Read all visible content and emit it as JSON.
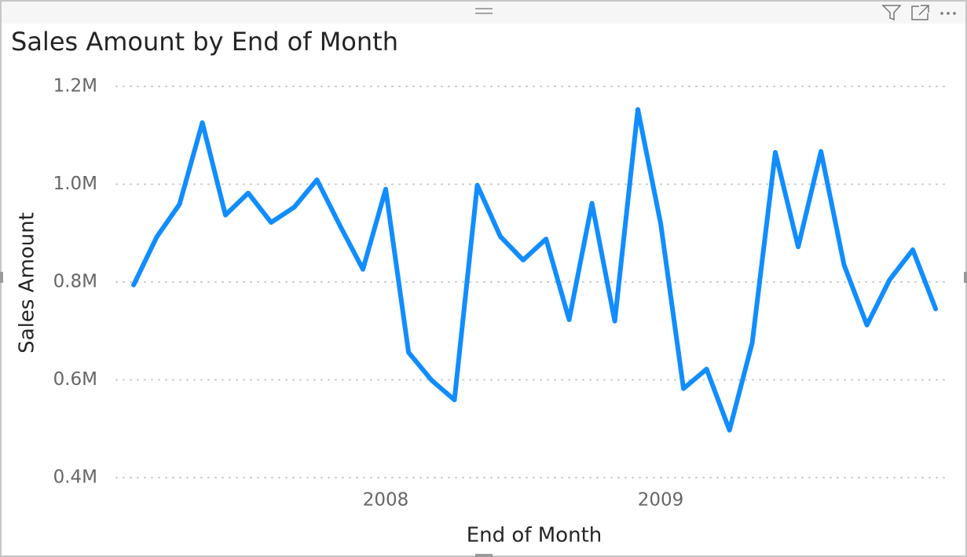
{
  "chart_data": {
    "type": "line",
    "title": "Sales Amount by End of Month",
    "x_label": "End of Month",
    "y_label": "Sales Amount",
    "x": [
      2007.083,
      2007.167,
      2007.25,
      2007.333,
      2007.417,
      2007.5,
      2007.583,
      2007.667,
      2007.75,
      2007.833,
      2007.917,
      2008,
      2008.083,
      2008.167,
      2008.25,
      2008.333,
      2008.417,
      2008.5,
      2008.583,
      2008.667,
      2008.75,
      2008.833,
      2008.917,
      2009,
      2009.083,
      2009.167,
      2009.25,
      2009.333,
      2009.417,
      2009.5,
      2009.583,
      2009.667,
      2009.75,
      2009.833,
      2009.917,
      2010
    ],
    "values": [
      794000,
      892000,
      959000,
      1126000,
      937000,
      982000,
      922000,
      953000,
      1009000,
      916000,
      826000,
      990000,
      656000,
      599000,
      559000,
      998000,
      893000,
      845000,
      888000,
      723000,
      961000,
      720000,
      1153000,
      919000,
      582000,
      622000,
      497000,
      676000,
      1065000,
      872000,
      1067000,
      835000,
      712000,
      805000,
      866000,
      745000
    ],
    "color": "#118dff",
    "xlim": [
      2007.02,
      2010.054
    ],
    "xticks": [
      2008,
      2009
    ],
    "ylim": [
      400000,
      1200000
    ],
    "yticks": [
      {
        "value": 400000,
        "label": "0.4M"
      },
      {
        "value": 600000,
        "label": "0.6M"
      },
      {
        "value": 800000,
        "label": "0.8M"
      },
      {
        "value": 1000000,
        "label": "1.0M"
      },
      {
        "value": 1200000,
        "label": "1.2M"
      }
    ],
    "grid": true
  }
}
